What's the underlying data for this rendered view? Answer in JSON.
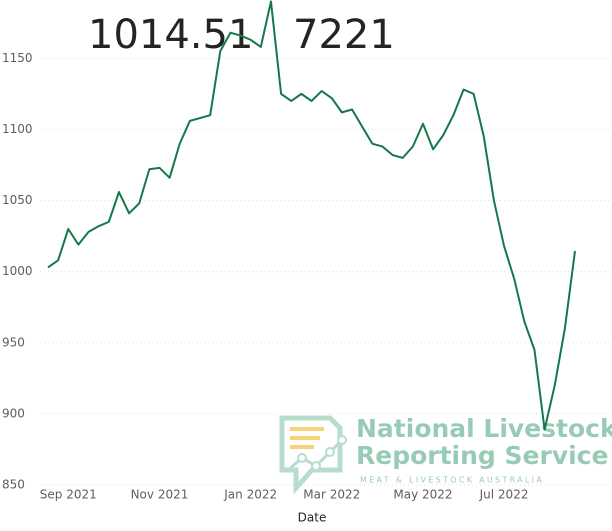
{
  "chart_data": {
    "type": "line",
    "x_label": "Date",
    "categories": [
      null,
      null,
      "Sep 2021",
      null,
      null,
      null,
      null,
      null,
      null,
      null,
      null,
      "Nov 2021",
      null,
      null,
      null,
      null,
      null,
      null,
      null,
      null,
      "Jan 2022",
      null,
      null,
      null,
      null,
      null,
      null,
      null,
      "Mar 2022",
      null,
      null,
      null,
      null,
      null,
      null,
      null,
      null,
      "May 2022",
      null,
      null,
      null,
      null,
      null,
      null,
      null,
      "Jul 2022",
      null,
      null,
      null,
      null,
      null,
      null,
      null
    ],
    "series": [
      {
        "color": "#16784a",
        "values": [
          1003,
          1008,
          1030,
          1019,
          1028,
          1032,
          1035,
          1056,
          1041,
          1048,
          1072,
          1073,
          1066,
          1090,
          1106,
          1108,
          1110,
          1155,
          1168,
          1166,
          1163,
          1158,
          1190,
          1125,
          1120,
          1125,
          1120,
          1127,
          1122,
          1112,
          1114,
          1102,
          1090,
          1088,
          1082,
          1080,
          1088,
          1104,
          1086,
          1096,
          1110,
          1128,
          1125,
          1095,
          1050,
          1018,
          995,
          965,
          945,
          889,
          920,
          960,
          1014.51
        ]
      }
    ],
    "ylim": [
      850,
      1191
    ],
    "yticks": [
      850,
      900,
      950,
      1000,
      1050,
      1100,
      1150
    ],
    "grid": true,
    "annotations": [
      "7221"
    ]
  },
  "watermark": {
    "line1": "National Livestock",
    "line2": "Reporting Service",
    "line3": "MEAT & LIVESTOCK AUSTRALIA"
  }
}
